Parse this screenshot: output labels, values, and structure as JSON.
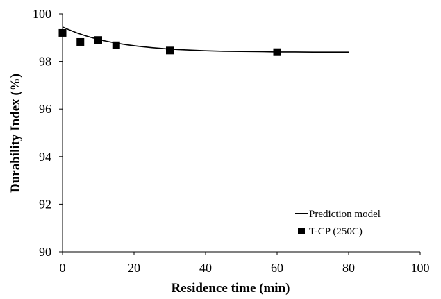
{
  "chart_data": {
    "type": "scatter",
    "title": "",
    "xlabel": "Residence time (min)",
    "ylabel": "Durability Index (%)",
    "xlim": [
      0,
      100
    ],
    "ylim": [
      90,
      100
    ],
    "x_ticks": [
      "0",
      "20",
      "40",
      "60",
      "80",
      "100"
    ],
    "y_ticks": [
      "90",
      "92",
      "94",
      "96",
      "98",
      "100"
    ],
    "grid": false,
    "legend_position": "bottom-right",
    "series": [
      {
        "name": "Prediction model",
        "kind": "line",
        "color": "#000000",
        "x": [
          0,
          2,
          4,
          6,
          8,
          10,
          12,
          15,
          18,
          21,
          25,
          30,
          35,
          40,
          45,
          50,
          55,
          60,
          65,
          70,
          75,
          80
        ],
        "y": [
          99.45,
          99.32,
          99.2,
          99.1,
          99.01,
          98.93,
          98.86,
          98.77,
          98.7,
          98.64,
          98.58,
          98.52,
          98.48,
          98.45,
          98.43,
          98.42,
          98.41,
          98.4,
          98.4,
          98.39,
          98.39,
          98.39
        ]
      },
      {
        "name": "T-CP (250C)",
        "kind": "markers",
        "marker": "square",
        "color": "#000000",
        "x": [
          0,
          5,
          10,
          15,
          30,
          60
        ],
        "y": [
          99.2,
          98.82,
          98.9,
          98.68,
          98.46,
          98.39
        ]
      }
    ]
  }
}
